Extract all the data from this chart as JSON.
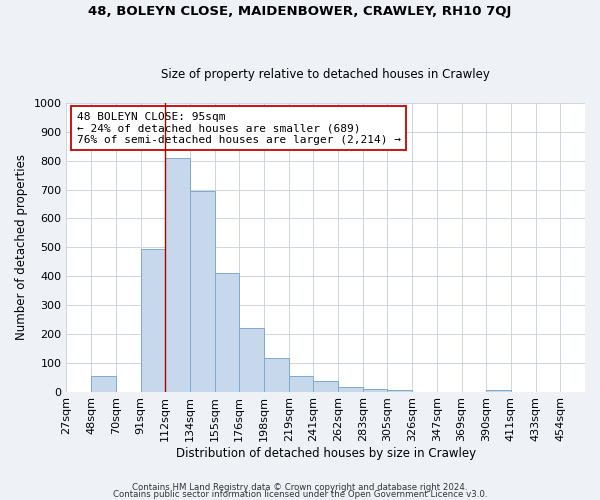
{
  "title": "48, BOLEYN CLOSE, MAIDENBOWER, CRAWLEY, RH10 7QJ",
  "subtitle": "Size of property relative to detached houses in Crawley",
  "xlabel": "Distribution of detached houses by size in Crawley",
  "ylabel": "Number of detached properties",
  "bar_labels": [
    "27sqm",
    "48sqm",
    "70sqm",
    "91sqm",
    "112sqm",
    "134sqm",
    "155sqm",
    "176sqm",
    "198sqm",
    "219sqm",
    "241sqm",
    "262sqm",
    "283sqm",
    "305sqm",
    "326sqm",
    "347sqm",
    "369sqm",
    "390sqm",
    "411sqm",
    "433sqm",
    "454sqm"
  ],
  "bar_values": [
    0,
    55,
    0,
    495,
    810,
    695,
    410,
    220,
    115,
    55,
    35,
    15,
    10,
    5,
    0,
    0,
    0,
    5,
    0,
    0,
    0
  ],
  "bar_color": "#c8d8ec",
  "bar_edge_color": "#7aaad4",
  "vline_idx": 4,
  "annotation_title": "48 BOLEYN CLOSE: 95sqm",
  "annotation_line1": "← 24% of detached houses are smaller (689)",
  "annotation_line2": "76% of semi-detached houses are larger (2,214) →",
  "vline_color": "#aa0000",
  "ylim": [
    0,
    1000
  ],
  "yticks": [
    0,
    100,
    200,
    300,
    400,
    500,
    600,
    700,
    800,
    900,
    1000
  ],
  "footer1": "Contains HM Land Registry data © Crown copyright and database right 2024.",
  "footer2": "Contains public sector information licensed under the Open Government Licence v3.0.",
  "background_color": "#eef2f7",
  "plot_background_color": "#ffffff",
  "grid_color": "#c5cfd8",
  "title_fontsize": 9.5,
  "subtitle_fontsize": 8.5,
  "xlabel_fontsize": 8.5,
  "ylabel_fontsize": 8.5,
  "tick_fontsize": 8,
  "ann_fontsize": 8
}
